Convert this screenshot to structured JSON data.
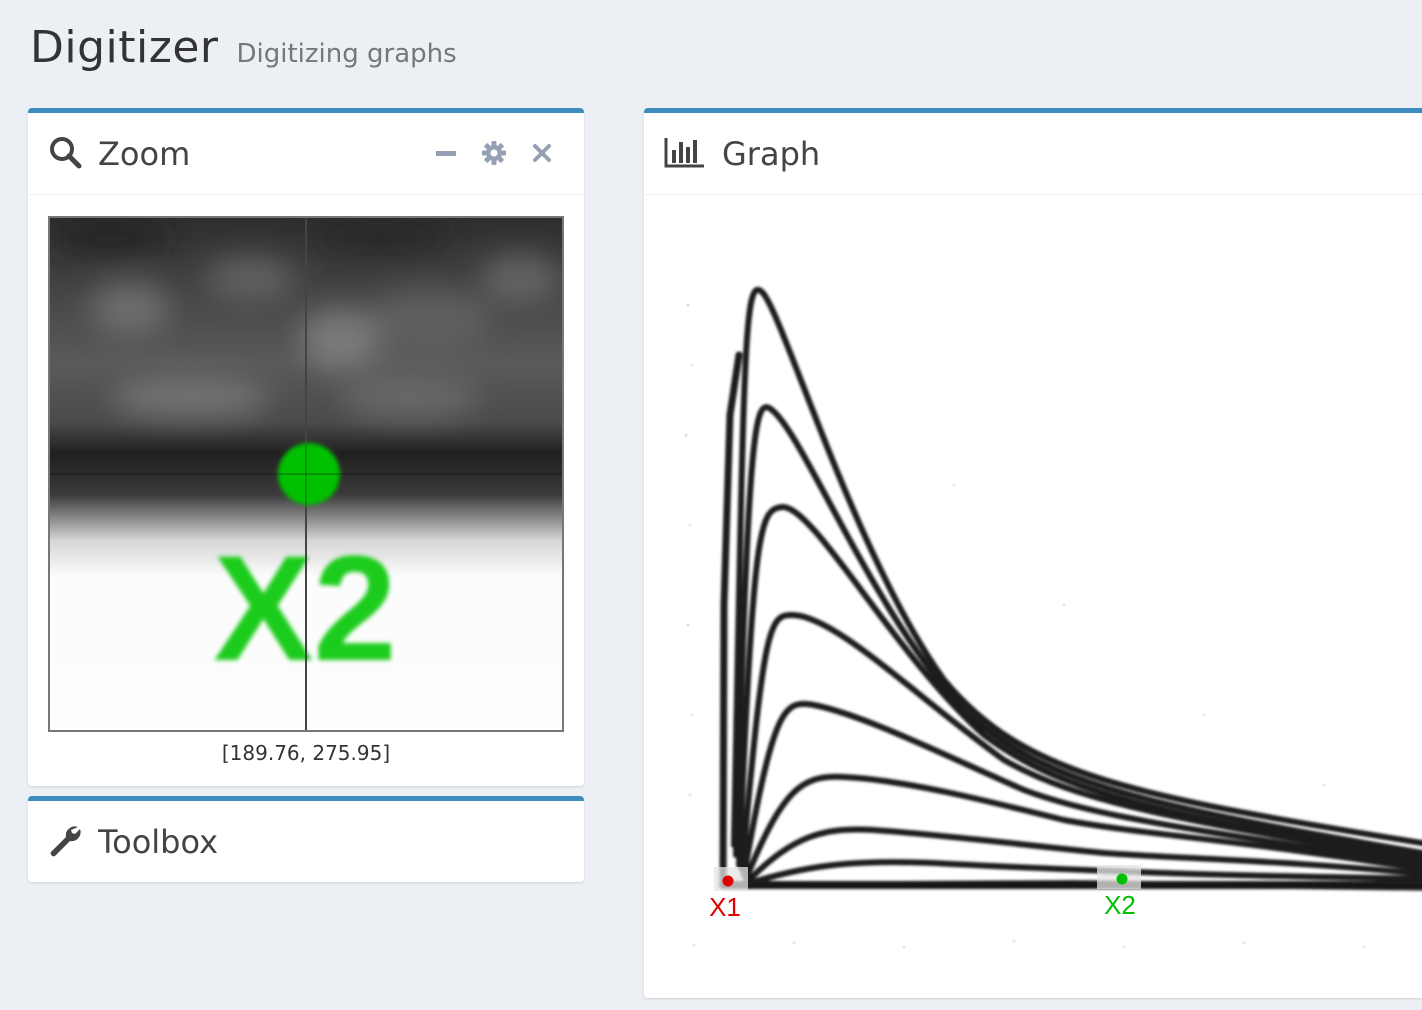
{
  "header": {
    "title": "Digitizer",
    "subtitle": "Digitizing graphs"
  },
  "zoom_panel": {
    "title": "Zoom",
    "icon": "search-icon",
    "tools": [
      "minus-icon",
      "gear-icon",
      "close-icon"
    ],
    "marker_label": "X2",
    "coords": "[189.76, 275.95]"
  },
  "toolbox_panel": {
    "title": "Toolbox",
    "icon": "wrench-icon"
  },
  "graph_panel": {
    "title": "Graph",
    "icon": "bar-chart-icon",
    "markers": [
      {
        "label": "X1",
        "color": "#e00000"
      },
      {
        "label": "X2",
        "color": "#00c000"
      }
    ]
  },
  "colors": {
    "accent": "#3c8dbc",
    "x1_marker": "#e00000",
    "x2_marker": "#00c000"
  }
}
